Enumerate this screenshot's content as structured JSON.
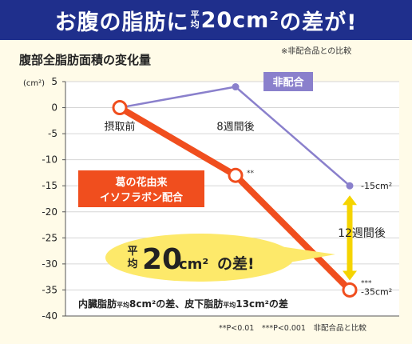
{
  "banner": {
    "title_pre": "お腹の脂肪に",
    "title_small_top": "平",
    "title_small_bottom": "均",
    "title_value": "20cm²",
    "title_post": "の差が!"
  },
  "top_note": "※非配合品との比較",
  "footer_note": "**P<0.01　***P<0.001　非配合品と比較",
  "colors": {
    "banner": "#1f2f8c",
    "orange_series": "#f04e1e",
    "purple_series": "#8a80cc",
    "arrow": "#f5d400",
    "callout": "#fde96a"
  },
  "chart_data": {
    "type": "line",
    "title": "腹部全脂肪面積の変化量",
    "ylabel": "(cm²)",
    "ylim": [
      -40,
      5
    ],
    "yticks": [
      "5",
      "0",
      "-5",
      "-10",
      "-15",
      "-20",
      "-25",
      "-30",
      "-35",
      "-40"
    ],
    "x": [
      "摂取前",
      "8週間後",
      "12週間後"
    ],
    "x_labels": [
      {
        "x": "摂取前",
        "text": "摂取前"
      },
      {
        "x": "8週間後",
        "text": "8週間後"
      },
      {
        "x": "12週間後",
        "text": "12週間後"
      }
    ],
    "series": [
      {
        "name": "非配合",
        "color": "#8a80cc",
        "values": [
          0,
          4,
          -15
        ],
        "end_label": "-15cm²",
        "markers": [
          "",
          "",
          ""
        ]
      },
      {
        "name": "葛の花由来\nイソフラボン配合",
        "color": "#f04e1e",
        "values": [
          0,
          -13,
          -35
        ],
        "end_label": "-35cm²",
        "markers": [
          "",
          "**",
          "***"
        ]
      }
    ],
    "callout": {
      "small_top": "平",
      "small_bottom": "均",
      "value": "20",
      "unit": "cm²",
      "suffix": "の差!"
    },
    "note": {
      "pre": "内臓脂肪",
      "avg1": "平均",
      "v1": "8cm²の差、皮下脂肪",
      "avg2": "平均",
      "v2": "13cm²の差"
    },
    "grid": true
  }
}
